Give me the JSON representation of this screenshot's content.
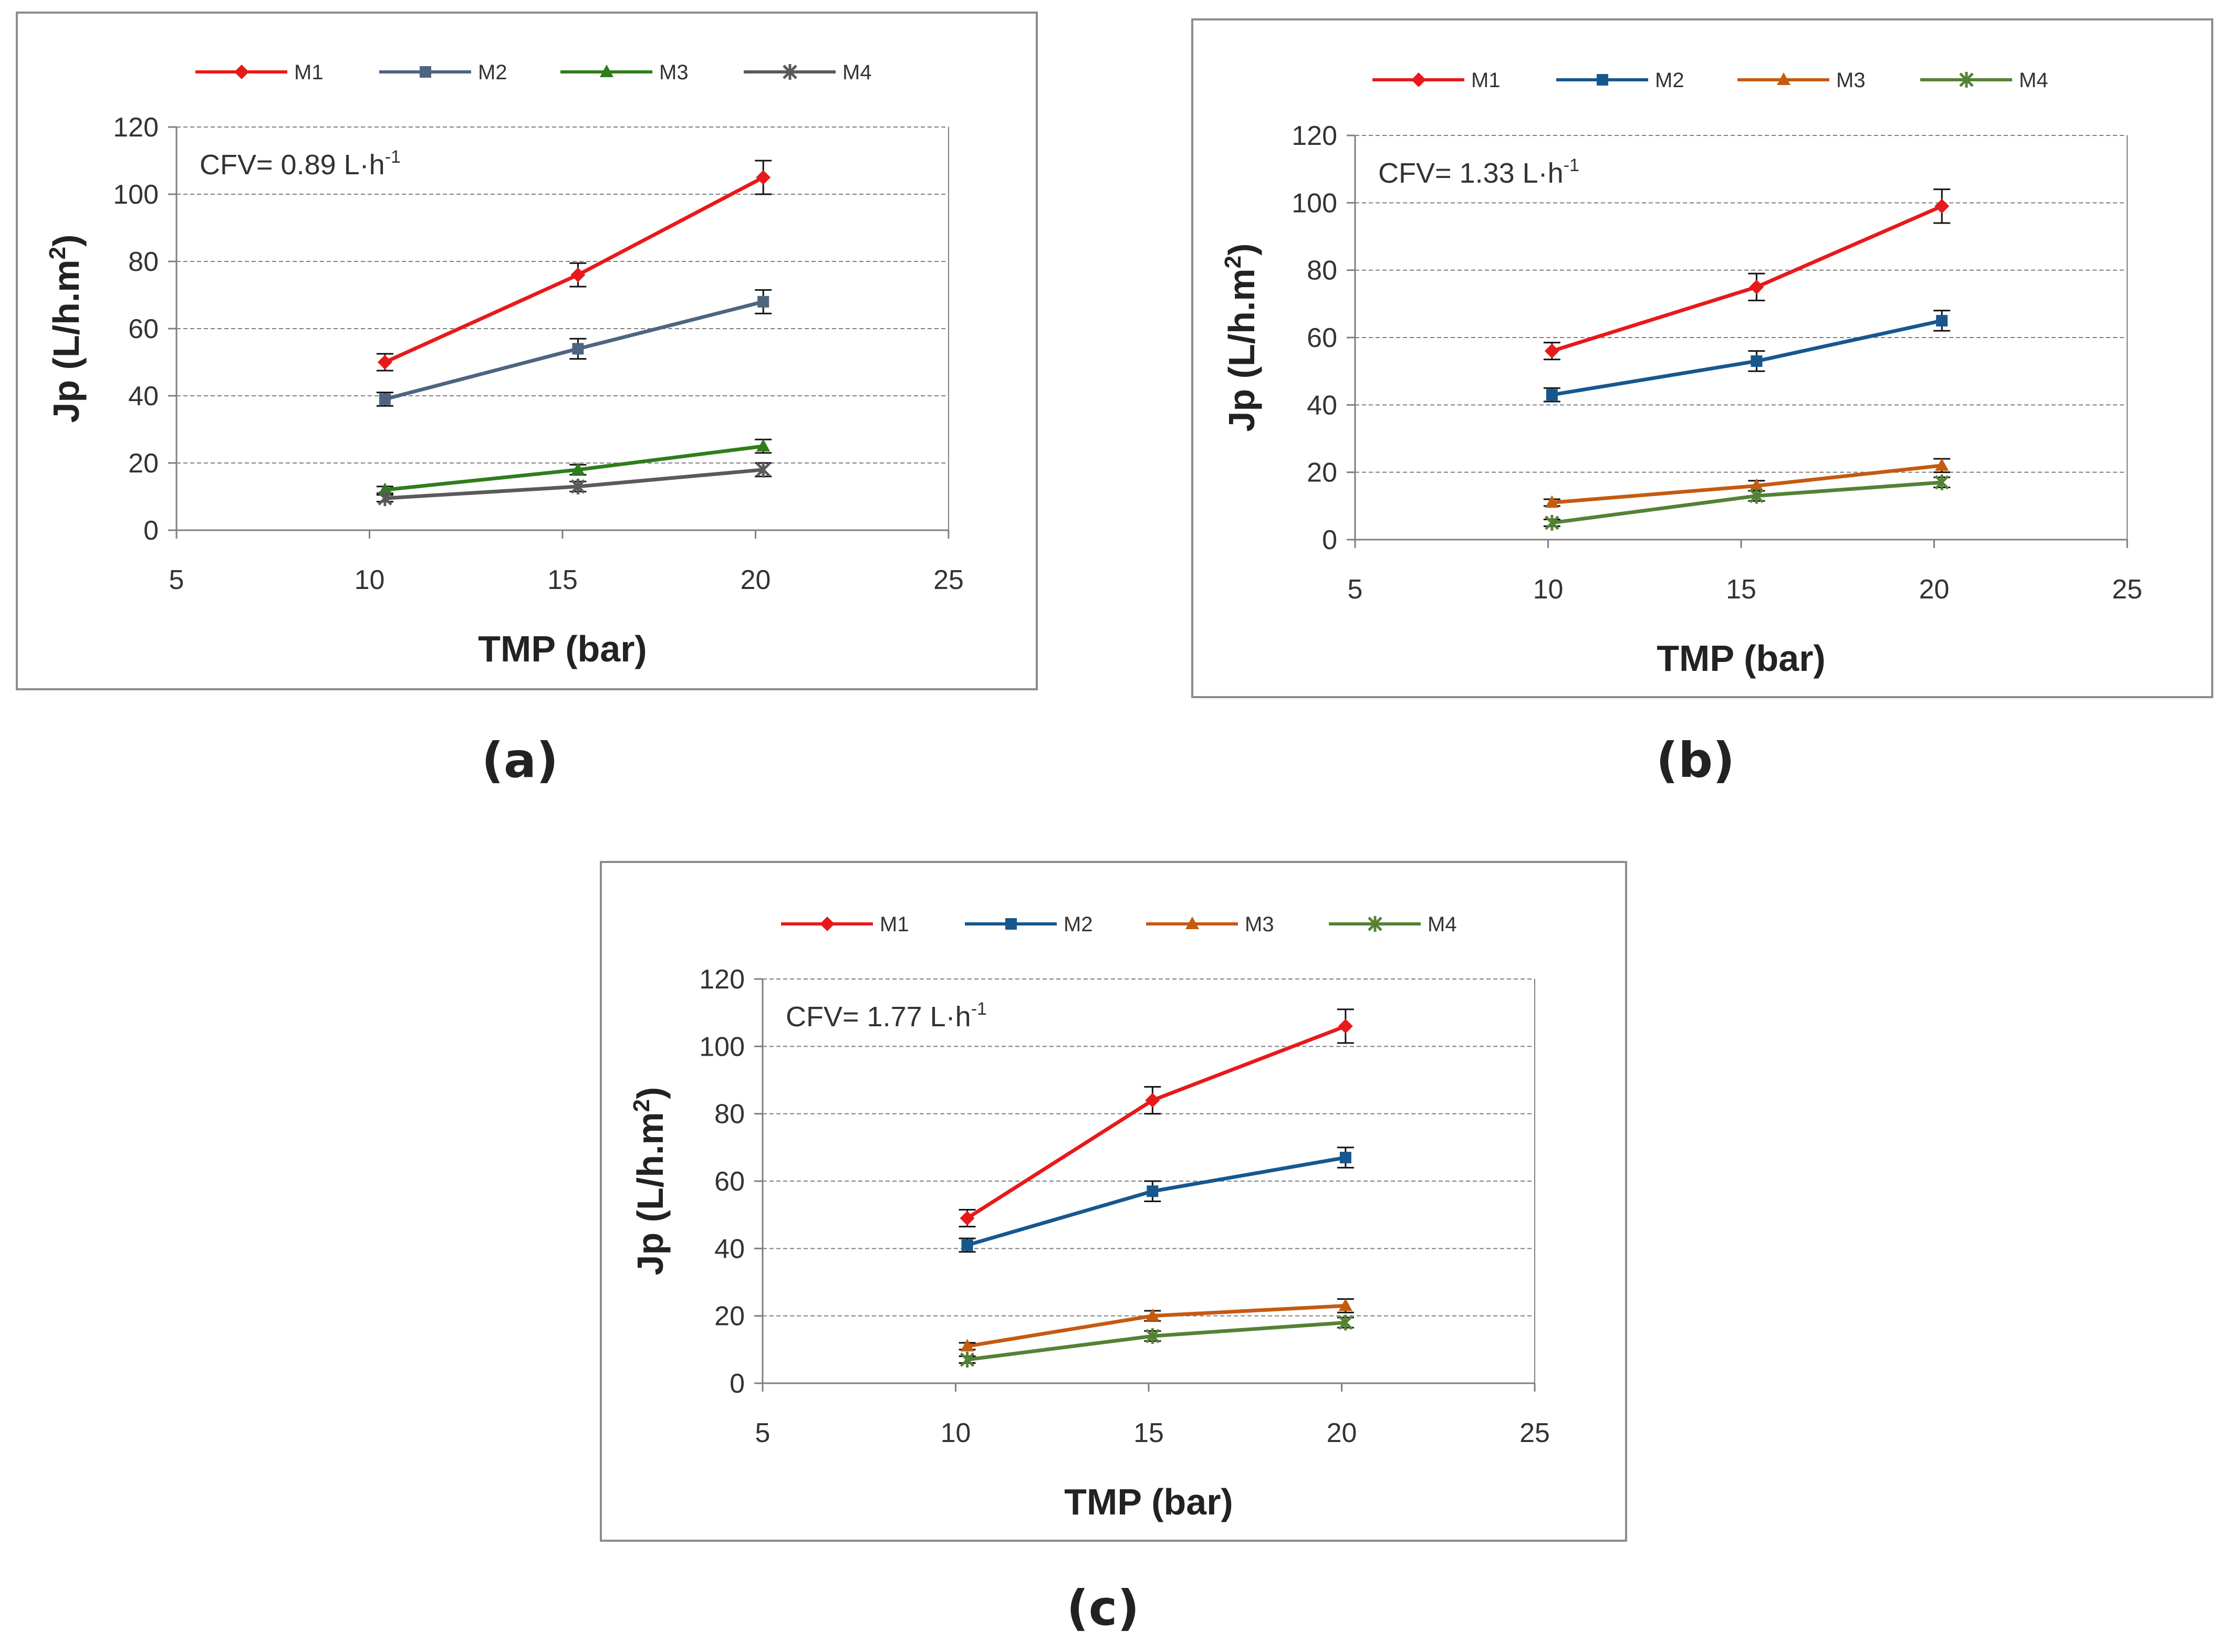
{
  "figure": {
    "colors": {
      "axis": "#7f7f7f",
      "grid": "#7f7f7f",
      "text": "#333333",
      "m1": "#e8191b",
      "m2_a": "#4e6580",
      "m2": "#17578e",
      "m3_a": "#2f7d1c",
      "m3": "#c55a11",
      "m4_a": "#5a5a5a",
      "m4": "#548235"
    }
  },
  "chart_data": [
    {
      "type": "line",
      "panel_label": "(a)",
      "annotation": "CFV= 0.89 L·h",
      "annotation_sup": "-1",
      "xlabel": "TMP (bar)",
      "ylabel": "Jp (L/h.m",
      "ylabel_sup": "2",
      "ylabel_end": ")",
      "xlim": [
        5,
        25
      ],
      "ylim": [
        0,
        120
      ],
      "xticks": [
        5,
        10,
        15,
        20,
        25
      ],
      "yticks": [
        0,
        20,
        40,
        60,
        80,
        100,
        120
      ],
      "grid": true,
      "legend_position": "top",
      "series": [
        {
          "name": "M1",
          "color": "#e8191b",
          "marker": "diamond",
          "x": [
            10.4,
            15.4,
            20.2
          ],
          "y": [
            50,
            76,
            105
          ],
          "err": [
            2.5,
            3.5,
            5
          ]
        },
        {
          "name": "M2",
          "color": "#4e6580",
          "marker": "square",
          "x": [
            10.4,
            15.4,
            20.2
          ],
          "y": [
            39,
            54,
            68
          ],
          "err": [
            2,
            3,
            3.5
          ]
        },
        {
          "name": "M3",
          "color": "#2f7d1c",
          "marker": "triangle",
          "x": [
            10.4,
            15.4,
            20.2
          ],
          "y": [
            12,
            18,
            25
          ],
          "err": [
            1,
            1.5,
            2
          ]
        },
        {
          "name": "M4",
          "color": "#5a5a5a",
          "marker": "x",
          "x": [
            10.4,
            15.4,
            20.2
          ],
          "y": [
            9.5,
            13,
            18
          ],
          "err": [
            1,
            1.5,
            2
          ]
        }
      ]
    },
    {
      "type": "line",
      "panel_label": "(b)",
      "annotation": "CFV= 1.33 L·h",
      "annotation_sup": "-1",
      "xlabel": "TMP (bar)",
      "ylabel": "Jp (L/h.m",
      "ylabel_sup": "2",
      "ylabel_end": ")",
      "xlim": [
        5,
        25
      ],
      "ylim": [
        0,
        120
      ],
      "xticks": [
        5,
        10,
        15,
        20,
        25
      ],
      "yticks": [
        0,
        20,
        40,
        60,
        80,
        100,
        120
      ],
      "grid": true,
      "legend_position": "top",
      "series": [
        {
          "name": "M1",
          "color": "#e8191b",
          "marker": "diamond",
          "x": [
            10.1,
            15.4,
            20.2
          ],
          "y": [
            56,
            75,
            99
          ],
          "err": [
            2.5,
            4,
            5
          ]
        },
        {
          "name": "M2",
          "color": "#17578e",
          "marker": "square",
          "x": [
            10.1,
            15.4,
            20.2
          ],
          "y": [
            43,
            53,
            65
          ],
          "err": [
            2,
            3,
            3
          ]
        },
        {
          "name": "M3",
          "color": "#c55a11",
          "marker": "triangle",
          "x": [
            10.1,
            15.4,
            20.2
          ],
          "y": [
            11,
            16,
            22
          ],
          "err": [
            1,
            1.5,
            2
          ]
        },
        {
          "name": "M4",
          "color": "#548235",
          "marker": "x",
          "x": [
            10.1,
            15.4,
            20.2
          ],
          "y": [
            5,
            13,
            17
          ],
          "err": [
            1,
            1.5,
            1.5
          ]
        }
      ]
    },
    {
      "type": "line",
      "panel_label": "(c)",
      "annotation": "CFV= 1.77 L·h",
      "annotation_sup": "-1",
      "xlabel": "TMP (bar)",
      "ylabel": "Jp (L/h.m",
      "ylabel_sup": "2",
      "ylabel_end": ")",
      "xlim": [
        5,
        25
      ],
      "ylim": [
        0,
        120
      ],
      "xticks": [
        5,
        10,
        15,
        20,
        25
      ],
      "yticks": [
        0,
        20,
        40,
        60,
        80,
        100,
        120
      ],
      "grid": true,
      "legend_position": "top",
      "series": [
        {
          "name": "M1",
          "color": "#e8191b",
          "marker": "diamond",
          "x": [
            10.3,
            15.1,
            20.1
          ],
          "y": [
            49,
            84,
            106
          ],
          "err": [
            2.5,
            4,
            5
          ]
        },
        {
          "name": "M2",
          "color": "#17578e",
          "marker": "square",
          "x": [
            10.3,
            15.1,
            20.1
          ],
          "y": [
            41,
            57,
            67
          ],
          "err": [
            2,
            3,
            3
          ]
        },
        {
          "name": "M3",
          "color": "#c55a11",
          "marker": "triangle",
          "x": [
            10.3,
            15.1,
            20.1
          ],
          "y": [
            11,
            20,
            23
          ],
          "err": [
            1,
            1.5,
            2
          ]
        },
        {
          "name": "M4",
          "color": "#548235",
          "marker": "x",
          "x": [
            10.3,
            15.1,
            20.1
          ],
          "y": [
            7,
            14,
            18
          ],
          "err": [
            1,
            1.5,
            1.5
          ]
        }
      ]
    }
  ]
}
